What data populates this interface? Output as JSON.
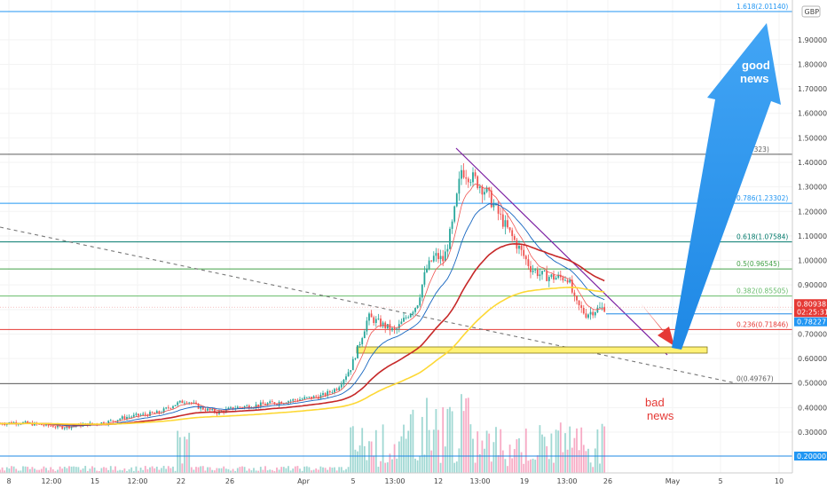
{
  "currency": "GBP",
  "price_tags": {
    "last": {
      "price": "0.80938",
      "countdown": "02:25:31",
      "color": "#e53935"
    },
    "line": {
      "price": "0.78227",
      "color": "#2196f3"
    },
    "bottom": {
      "price": "0.20000",
      "color": "#2196f3"
    }
  },
  "annotations": {
    "good_news": [
      "good",
      "news"
    ],
    "bad_news": [
      "bad",
      "news"
    ]
  },
  "colors": {
    "up": "#26a69a",
    "down": "#ef5350",
    "ema_fast": "#ef5350",
    "ema_mid": "#1565c0",
    "ema_slow": "#c62828",
    "ema_long": "#fdd835",
    "trendline": "#7b1fa2",
    "support_box": "#fff176",
    "good_arrow": "#1e88e5",
    "bad_arrow": "#e53935"
  },
  "chart_data": {
    "type": "candlestick",
    "y_axis": {
      "min": 0.2,
      "max": 2.0,
      "ticks": [
        "1.90000",
        "1.80000",
        "1.70000",
        "1.60000",
        "1.50000",
        "1.40000",
        "1.30000",
        "1.20000",
        "1.10000",
        "1.00000",
        "0.90000",
        "0.80000",
        "0.70000",
        "0.60000",
        "0.50000",
        "0.40000",
        "0.30000"
      ]
    },
    "x_axis": {
      "ticks": [
        "8",
        "12:00",
        "15",
        "12:00",
        "22",
        "26",
        "Apr",
        "5",
        "13:00",
        "12",
        "13:00",
        "19",
        "13:00",
        "26",
        "May",
        "5",
        "10"
      ]
    },
    "fib_levels": [
      {
        "label": "1.618(2.01140)",
        "value": 2.0114,
        "color": "#2196f3"
      },
      {
        "label": "(1.43323)",
        "value": 1.43323,
        "color": "#5d5d5d"
      },
      {
        "label": "0.786(1.23302)",
        "value": 1.23302,
        "color": "#2196f3"
      },
      {
        "label": "0.618(1.07584)",
        "value": 1.07584,
        "color": "#00796b"
      },
      {
        "label": "0.5(0.96545)",
        "value": 0.96545,
        "color": "#43a047"
      },
      {
        "label": "0.382(0.85505)",
        "value": 0.85505,
        "color": "#66bb6a"
      },
      {
        "label": "0.236(0.71846)",
        "value": 0.71846,
        "color": "#e53935"
      },
      {
        "label": "0(0.49767)",
        "value": 0.49767,
        "color": "#5d5d5d"
      }
    ],
    "close_path": [
      [
        0.335,
        0
      ],
      [
        0.34,
        20
      ],
      [
        0.33,
        45
      ],
      [
        0.32,
        70
      ],
      [
        0.33,
        95
      ],
      [
        0.34,
        120
      ],
      [
        0.36,
        140
      ],
      [
        0.37,
        160
      ],
      [
        0.38,
        180
      ],
      [
        0.41,
        195
      ],
      [
        0.43,
        210
      ],
      [
        0.4,
        225
      ],
      [
        0.38,
        245
      ],
      [
        0.4,
        265
      ],
      [
        0.41,
        290
      ],
      [
        0.42,
        310
      ],
      [
        0.43,
        330
      ],
      [
        0.44,
        350
      ],
      [
        0.45,
        365
      ],
      [
        0.48,
        380
      ],
      [
        0.56,
        395
      ],
      [
        0.66,
        405
      ],
      [
        0.77,
        415
      ],
      [
        0.74,
        430
      ],
      [
        0.71,
        445
      ],
      [
        0.78,
        460
      ],
      [
        0.82,
        470
      ],
      [
        0.96,
        480
      ],
      [
        1.02,
        490
      ],
      [
        1.0,
        500
      ],
      [
        1.15,
        510
      ],
      [
        1.37,
        520
      ],
      [
        1.33,
        535
      ],
      [
        1.28,
        548
      ],
      [
        1.2,
        560
      ],
      [
        1.12,
        573
      ],
      [
        1.05,
        585
      ],
      [
        0.97,
        598
      ],
      [
        0.94,
        610
      ],
      [
        0.93,
        625
      ],
      [
        0.93,
        640
      ],
      [
        0.83,
        648
      ],
      [
        0.78,
        660
      ],
      [
        0.8,
        672
      ],
      [
        0.81,
        683
      ]
    ]
  }
}
